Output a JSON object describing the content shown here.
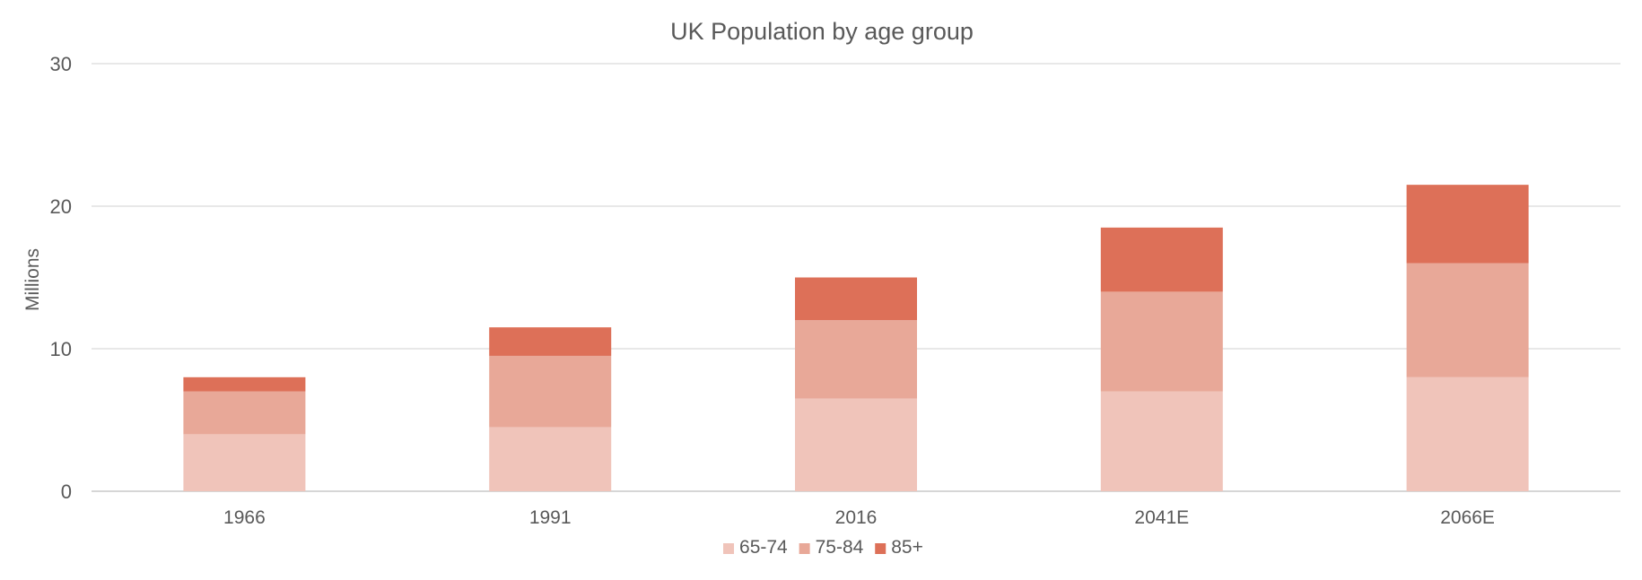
{
  "chart_data": {
    "type": "bar",
    "stacked": true,
    "title": "UK Population by age group",
    "xlabel": "",
    "ylabel": "Millions",
    "ylim": [
      0,
      30
    ],
    "yticks": [
      0,
      10,
      20,
      30
    ],
    "grid": true,
    "legend_position": "bottom",
    "categories": [
      "1966",
      "1991",
      "2016",
      "2041E",
      "2066E"
    ],
    "series": [
      {
        "name": "65-74",
        "color": "#f0c4ba",
        "values": [
          4,
          4.5,
          6.5,
          7,
          8
        ]
      },
      {
        "name": "75-84",
        "color": "#e8a898",
        "values": [
          3,
          5,
          5.5,
          7,
          8
        ]
      },
      {
        "name": "85+",
        "color": "#dd7058",
        "values": [
          1,
          2,
          3,
          4.5,
          5.5
        ]
      }
    ]
  }
}
